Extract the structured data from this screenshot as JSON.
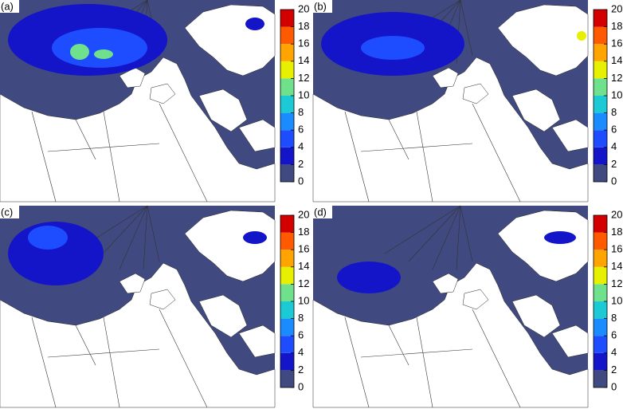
{
  "panels": [
    {
      "label": "(a)",
      "colorbar": {
        "ticks": [
          0,
          2,
          4,
          6,
          8,
          10,
          12,
          14,
          16,
          18,
          20
        ]
      }
    },
    {
      "label": "(b)",
      "colorbar": {
        "ticks": [
          0,
          2,
          4,
          6,
          8,
          10,
          12,
          14,
          16,
          18,
          20
        ]
      }
    },
    {
      "label": "(c)",
      "colorbar": {
        "ticks": [
          0,
          2,
          4,
          6,
          8,
          10,
          12,
          14,
          16,
          18,
          20
        ]
      }
    },
    {
      "label": "(d)",
      "colorbar": {
        "ticks": [
          0,
          2,
          4,
          6,
          8,
          10,
          12,
          14,
          16,
          18,
          20
        ]
      }
    }
  ],
  "colormap": [
    "#404a80",
    "#1414c8",
    "#1e4cff",
    "#1a8cff",
    "#1ccad6",
    "#6fe08c",
    "#e6f000",
    "#ffa400",
    "#ff5a00",
    "#d20000"
  ]
}
